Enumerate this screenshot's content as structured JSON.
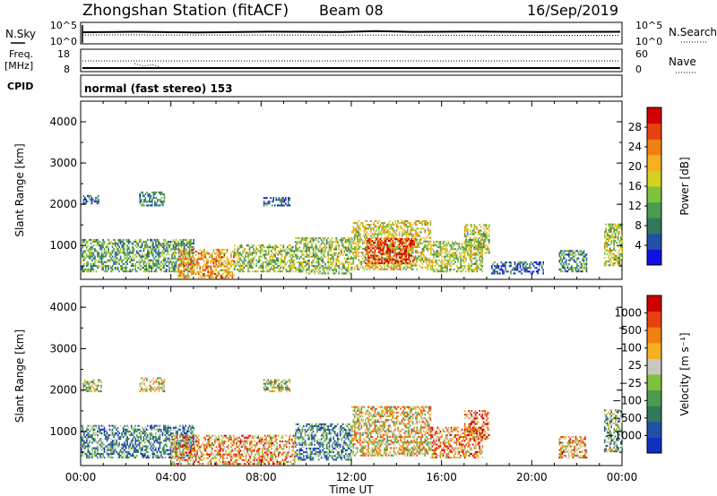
{
  "header": {
    "station": "Zhongshan Station (fitACF)",
    "beam": "Beam 08",
    "date": "16/Sep/2019"
  },
  "strip1": {
    "left_label": "N.Sky",
    "left_ticks": [
      "10^5",
      "10^0"
    ],
    "right_ticks": [
      "10^5",
      "10^0"
    ],
    "right_label": "N.Search"
  },
  "strip2": {
    "left_label_line1": "Freq.",
    "left_label_line2": "[MHz]",
    "left_ticks": [
      "18",
      "8"
    ],
    "right_ticks": [
      "60",
      "0"
    ],
    "right_label": "Nave"
  },
  "cpid": {
    "label": "CPID",
    "text": "normal (fast stereo) 153"
  },
  "chart_data": [
    {
      "type": "heatmap",
      "title": "",
      "xlabel": "Time UT",
      "ylabel": "Slant Range [km]",
      "x_ticks": [
        "00:00",
        "04:00",
        "08:00",
        "12:00",
        "16:00",
        "20:00",
        "00:00"
      ],
      "y_ticks": [
        "1000",
        "2000",
        "3000",
        "4000"
      ],
      "xlim_hours": [
        0,
        24
      ],
      "ylim_km": [
        180,
        4500
      ],
      "colorbar": {
        "label": "Power [dB]",
        "ticks": [
          "4",
          "8",
          "12",
          "16",
          "20",
          "24",
          "28"
        ],
        "colors": [
          "#1010e0",
          "#2050a8",
          "#2f7a5a",
          "#4a9a50",
          "#7ec23a",
          "#d6d020",
          "#f6b020",
          "#f08010",
          "#e84010",
          "#d00000"
        ]
      },
      "regions": [
        {
          "t0": 0.1,
          "t1": 0.8,
          "r0": 2000,
          "r1": 2200,
          "level": 0.15
        },
        {
          "t0": 2.6,
          "t1": 3.7,
          "r0": 1950,
          "r1": 2300,
          "level": 0.25
        },
        {
          "t0": 8.1,
          "t1": 9.3,
          "r0": 1950,
          "r1": 2150,
          "level": 0.2
        },
        {
          "t0": 0.0,
          "t1": 5.0,
          "r0": 350,
          "r1": 1150,
          "level": 0.35
        },
        {
          "t0": 4.3,
          "t1": 6.8,
          "r0": 200,
          "r1": 900,
          "level": 0.7
        },
        {
          "t0": 6.8,
          "t1": 9.5,
          "r0": 350,
          "r1": 1000,
          "level": 0.45
        },
        {
          "t0": 9.5,
          "t1": 12.0,
          "r0": 300,
          "r1": 1200,
          "level": 0.45
        },
        {
          "t0": 12.0,
          "t1": 15.5,
          "r0": 400,
          "r1": 1600,
          "level": 0.55
        },
        {
          "t0": 12.6,
          "t1": 14.8,
          "r0": 550,
          "r1": 1150,
          "level": 0.9
        },
        {
          "t0": 15.5,
          "t1": 17.8,
          "r0": 350,
          "r1": 1100,
          "level": 0.5
        },
        {
          "t0": 17.0,
          "t1": 18.1,
          "r0": 800,
          "r1": 1500,
          "level": 0.5
        },
        {
          "t0": 18.2,
          "t1": 20.5,
          "r0": 300,
          "r1": 600,
          "level": 0.15
        },
        {
          "t0": 21.2,
          "t1": 22.4,
          "r0": 350,
          "r1": 850,
          "level": 0.3
        },
        {
          "t0": 23.2,
          "t1": 24.0,
          "r0": 500,
          "r1": 1500,
          "level": 0.5
        }
      ]
    },
    {
      "type": "heatmap",
      "title": "",
      "xlabel": "Time UT",
      "ylabel": "Slant Range [km]",
      "x_ticks": [
        "00:00",
        "04:00",
        "08:00",
        "12:00",
        "16:00",
        "20:00",
        "00:00"
      ],
      "y_ticks": [
        "1000",
        "2000",
        "3000",
        "4000"
      ],
      "xlim_hours": [
        0,
        24
      ],
      "ylim_km": [
        180,
        4500
      ],
      "colorbar": {
        "label": "Velocity [m s⁻¹]",
        "ticks": [
          "1000",
          "500",
          "100",
          "25",
          "−25",
          "−100",
          "−500",
          "−1000"
        ],
        "colors": [
          "#1030c0",
          "#2050a8",
          "#2f7a5a",
          "#4a9a50",
          "#7ec23a",
          "#c8c8c0",
          "#f6b020",
          "#f08010",
          "#e84010",
          "#d00000"
        ]
      },
      "regions": [
        {
          "t0": 0.1,
          "t1": 0.9,
          "r0": 1950,
          "r1": 2250,
          "level": 0.5
        },
        {
          "t0": 2.6,
          "t1": 3.7,
          "r0": 1950,
          "r1": 2300,
          "level": 0.5
        },
        {
          "t0": 8.1,
          "t1": 9.3,
          "r0": 1950,
          "r1": 2250,
          "level": 0.5
        },
        {
          "t0": 0.0,
          "t1": 5.0,
          "r0": 350,
          "r1": 1150,
          "level": 0.3
        },
        {
          "t0": 4.0,
          "t1": 9.5,
          "r0": 200,
          "r1": 900,
          "level": 0.7
        },
        {
          "t0": 9.5,
          "t1": 12.0,
          "r0": 300,
          "r1": 1200,
          "level": 0.3
        },
        {
          "t0": 12.0,
          "t1": 15.5,
          "r0": 400,
          "r1": 1600,
          "level": 0.6
        },
        {
          "t0": 15.5,
          "t1": 17.8,
          "r0": 350,
          "r1": 1100,
          "level": 0.75
        },
        {
          "t0": 17.0,
          "t1": 18.1,
          "r0": 800,
          "r1": 1500,
          "level": 0.8
        },
        {
          "t0": 21.2,
          "t1": 22.4,
          "r0": 350,
          "r1": 850,
          "level": 0.7
        },
        {
          "t0": 23.2,
          "t1": 24.0,
          "r0": 500,
          "r1": 1500,
          "level": 0.4
        }
      ]
    }
  ]
}
